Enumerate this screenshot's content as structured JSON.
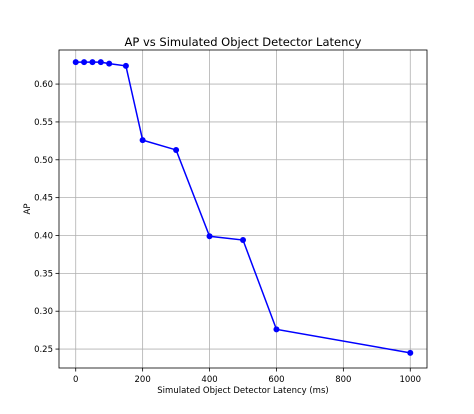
{
  "chart_data": {
    "type": "line",
    "title": "AP vs Simulated Object Detector Latency",
    "xlabel": "Simulated Object Detector Latency (ms)",
    "ylabel": "AP",
    "xlim": [
      -50,
      1050
    ],
    "ylim": [
      0.225,
      0.645
    ],
    "xticks": [
      0,
      200,
      400,
      600,
      800,
      1000
    ],
    "yticks": [
      0.25,
      0.3,
      0.35,
      0.4,
      0.45,
      0.5,
      0.55,
      0.6
    ],
    "ytick_labels": [
      "0.25",
      "0.30",
      "0.35",
      "0.40",
      "0.45",
      "0.50",
      "0.55",
      "0.60"
    ],
    "grid": true,
    "series": [
      {
        "color": "#0000ff",
        "marker": "circle",
        "x": [
          0,
          25,
          50,
          75,
          100,
          150,
          200,
          300,
          400,
          500,
          600,
          1000
        ],
        "y": [
          0.629,
          0.629,
          0.629,
          0.629,
          0.627,
          0.624,
          0.526,
          0.513,
          0.399,
          0.394,
          0.276,
          0.245
        ]
      }
    ]
  }
}
